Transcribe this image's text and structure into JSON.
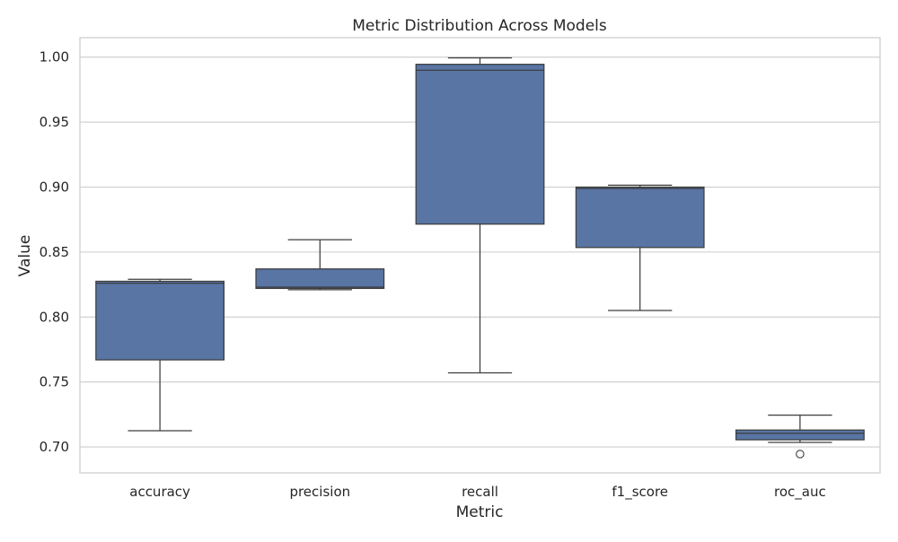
{
  "chart_data": {
    "type": "box",
    "title": "Metric Distribution Across Models",
    "xlabel": "Metric",
    "ylabel": "Value",
    "ylim": [
      0.68,
      1.015
    ],
    "yticks": [
      "0.70",
      "0.75",
      "0.80",
      "0.85",
      "0.90",
      "0.95",
      "1.00"
    ],
    "grid": "horizontal",
    "colors": {
      "box_fill": "#5875a4",
      "line": "#3d3d3d",
      "grid": "#cccccc",
      "frame": "#cccccc"
    },
    "categories": [
      "accuracy",
      "precision",
      "recall",
      "f1_score",
      "roc_auc"
    ],
    "boxes": [
      {
        "category": "accuracy",
        "whislo": 0.7125,
        "q1": 0.767,
        "med": 0.826,
        "q3": 0.8275,
        "whishi": 0.829,
        "fliers": []
      },
      {
        "category": "precision",
        "whislo": 0.821,
        "q1": 0.822,
        "med": 0.823,
        "q3": 0.837,
        "whishi": 0.8595,
        "fliers": []
      },
      {
        "category": "recall",
        "whislo": 0.757,
        "q1": 0.8715,
        "med": 0.99,
        "q3": 0.9945,
        "whishi": 0.9995,
        "fliers": []
      },
      {
        "category": "f1_score",
        "whislo": 0.805,
        "q1": 0.8535,
        "med": 0.899,
        "q3": 0.9,
        "whishi": 0.9015,
        "fliers": []
      },
      {
        "category": "roc_auc",
        "whislo": 0.7035,
        "q1": 0.7055,
        "med": 0.7105,
        "q3": 0.713,
        "whishi": 0.7245,
        "fliers": [
          0.6945
        ]
      }
    ]
  }
}
